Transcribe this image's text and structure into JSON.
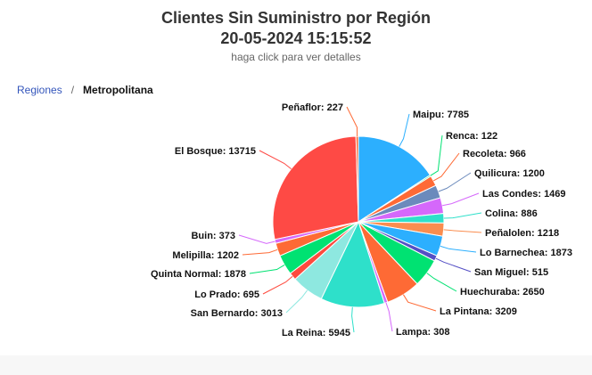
{
  "header": {
    "title": "Clientes Sin Suministro por Región",
    "timestamp": "20-05-2024 15:15:52",
    "subtitle": "haga click para ver detalles"
  },
  "breadcrumb": {
    "parent": "Regiones",
    "separator": "/",
    "current": "Metropolitana"
  },
  "chart_data": {
    "type": "pie",
    "title": "Clientes Sin Suministro por Región",
    "subtitle": "20-05-2024 15:15:52",
    "slices": [
      {
        "name": "Maipu",
        "value": 7785,
        "color": "#2caffe"
      },
      {
        "name": "Renca",
        "value": 122,
        "color": "#00e272"
      },
      {
        "name": "Recoleta",
        "value": 966,
        "color": "#fe6a35"
      },
      {
        "name": "Quilicura",
        "value": 1200,
        "color": "#6b8abc"
      },
      {
        "name": "Las Condes",
        "value": 1469,
        "color": "#d568fb"
      },
      {
        "name": "Colina",
        "value": 886,
        "color": "#2ee0ca"
      },
      {
        "name": "Peñalolen",
        "value": 1218,
        "color": "#fa8d4f"
      },
      {
        "name": "Lo Barnechea",
        "value": 1873,
        "color": "#2caffe"
      },
      {
        "name": "San Miguel",
        "value": 515,
        "color": "#544fc5"
      },
      {
        "name": "Huechuraba",
        "value": 2650,
        "color": "#00e272"
      },
      {
        "name": "La Pintana",
        "value": 3209,
        "color": "#fe6a35"
      },
      {
        "name": "Lampa",
        "value": 308,
        "color": "#d568fb"
      },
      {
        "name": "La Reina",
        "value": 5945,
        "color": "#2ee0ca"
      },
      {
        "name": "San Bernardo",
        "value": 3013,
        "color": "#8ee8e0"
      },
      {
        "name": "Lo Prado",
        "value": 695,
        "color": "#fe4a3e"
      },
      {
        "name": "Quinta Normal",
        "value": 1878,
        "color": "#00e272"
      },
      {
        "name": "Melipilla",
        "value": 1202,
        "color": "#fe6a35"
      },
      {
        "name": "Buin",
        "value": 373,
        "color": "#d568fb"
      },
      {
        "name": "El Bosque",
        "value": 13715,
        "color": "#fe4a45"
      },
      {
        "name": "Peñaflor",
        "value": 227,
        "color": "#fe6a35"
      }
    ],
    "legend": "none",
    "data_labels": true
  }
}
